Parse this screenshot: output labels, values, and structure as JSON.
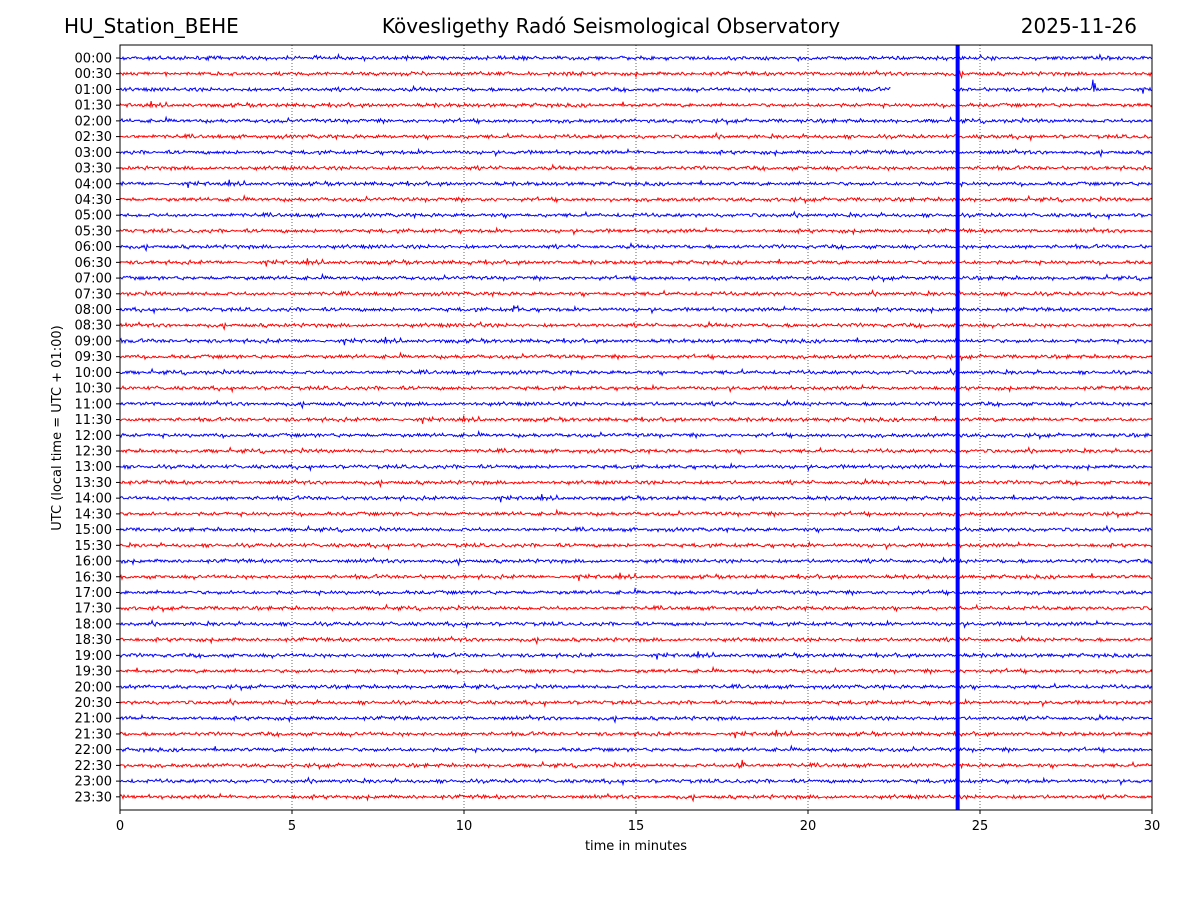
{
  "header": {
    "station": "HU_Station_BEHE",
    "title": "Kövesligethy Radó Seismological Observatory",
    "date": "2025-11-26"
  },
  "chart_data": {
    "type": "line",
    "subtype": "helicorder",
    "xlabel": "time in minutes",
    "ylabel": "UTC (local time = UTC + 01:00)",
    "xlim": [
      0,
      30
    ],
    "xticks": [
      0,
      5,
      10,
      15,
      20,
      25,
      30
    ],
    "grid": "vertical dotted lines at each x tick",
    "row_labels": [
      "00:00",
      "00:30",
      "01:00",
      "01:30",
      "02:00",
      "02:30",
      "03:00",
      "03:30",
      "04:00",
      "04:30",
      "05:00",
      "05:30",
      "06:00",
      "06:30",
      "07:00",
      "07:30",
      "08:00",
      "08:30",
      "09:00",
      "09:30",
      "10:00",
      "10:30",
      "11:00",
      "11:30",
      "12:00",
      "12:30",
      "13:00",
      "13:30",
      "14:00",
      "14:30",
      "15:00",
      "15:30",
      "16:00",
      "16:30",
      "17:00",
      "17:30",
      "18:00",
      "18:30",
      "19:00",
      "19:30",
      "20:00",
      "20:30",
      "21:00",
      "21:30",
      "22:00",
      "22:30",
      "23:00",
      "23:30"
    ],
    "trace_colors": [
      "#0000ff",
      "#ff0000"
    ],
    "data_gap": {
      "row": "01:00",
      "start_min": 22.4,
      "end_min": 24.2
    },
    "marker_line": {
      "x_min": 24.35,
      "color": "#0000ff"
    },
    "events": [
      {
        "row": "00:30",
        "x_min": 24.35,
        "amplitude": "large"
      },
      {
        "row": "01:00",
        "x_min": 28.3,
        "amplitude": "large"
      },
      {
        "row": "08:00",
        "x_min": 11.5,
        "amplitude": "small"
      },
      {
        "row": "08:30",
        "x_min": 10.4,
        "amplitude": "small"
      },
      {
        "row": "22:30",
        "x_min": 18.1,
        "amplitude": "medium"
      }
    ]
  }
}
